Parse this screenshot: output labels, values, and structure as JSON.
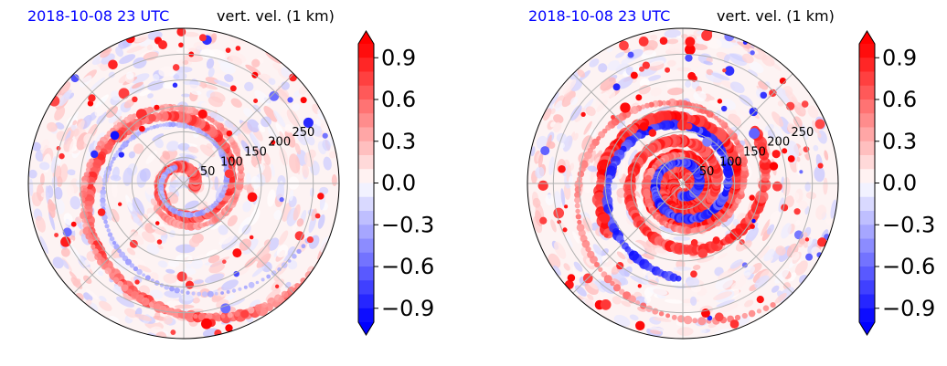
{
  "chart_data": [
    {
      "type": "heatmap",
      "projection": "polar",
      "panel": "left",
      "title_left": "2018-10-08 23 UTC",
      "title_right": "vert. vel. (1 km)",
      "radial_ticks": [
        "50",
        "100",
        "150",
        "200",
        "250"
      ],
      "radial_range": [
        0,
        300
      ],
      "grid": true,
      "colorbar": {
        "ticks": [
          "0.9",
          "0.6",
          "0.3",
          "0.0",
          "−0.3",
          "−0.6",
          "−0.9"
        ],
        "range": [
          -1.0,
          1.0
        ],
        "extend": "both",
        "colormap": "bwr"
      }
    },
    {
      "type": "heatmap",
      "projection": "polar",
      "panel": "right",
      "title_left": "2018-10-08 23 UTC",
      "title_right": "vert. vel. (1 km)",
      "radial_ticks": [
        "50",
        "100",
        "150",
        "200",
        "250"
      ],
      "radial_range": [
        0,
        300
      ],
      "grid": true,
      "colorbar": {
        "ticks": [
          "0.9",
          "0.6",
          "0.3",
          "0.0",
          "−0.3",
          "−0.6",
          "−0.9"
        ],
        "range": [
          -1.0,
          1.0
        ],
        "extend": "both",
        "colormap": "bwr"
      }
    }
  ],
  "colors": {
    "title_date": "#0000ff",
    "positive": "#ff0000",
    "negative": "#0000ff",
    "neutral": "#ffffff",
    "grid": "#b0b0b0"
  }
}
